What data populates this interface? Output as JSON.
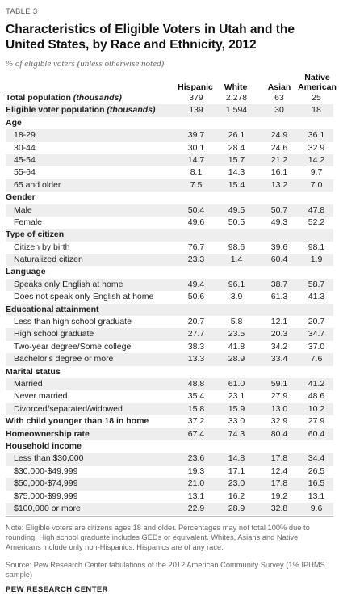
{
  "table_label": "TABLE 3",
  "title": "Characteristics of Eligible Voters in Utah and the United States, by Race and Ethnicity, 2012",
  "subtitle": "% of eligible voters (unless otherwise noted)",
  "columns": [
    "Hispanic",
    "White",
    "Asian",
    "Native American"
  ],
  "totals": [
    {
      "label_main": "Total population ",
      "label_em": "(thousands)",
      "values": [
        "379",
        "2,278",
        "63",
        "25"
      ]
    },
    {
      "label_main": "Eligible voter population ",
      "label_em": "(thousands)",
      "values": [
        "139",
        "1,594",
        "30",
        "18"
      ]
    }
  ],
  "rows": [
    {
      "type": "section",
      "label": "Age"
    },
    {
      "type": "item",
      "label": "18-29",
      "values": [
        "39.7",
        "26.1",
        "24.9",
        "36.1"
      ]
    },
    {
      "type": "item",
      "label": "30-44",
      "values": [
        "30.1",
        "28.4",
        "24.6",
        "32.9"
      ]
    },
    {
      "type": "item",
      "label": "45-54",
      "values": [
        "14.7",
        "15.7",
        "21.2",
        "14.2"
      ]
    },
    {
      "type": "item",
      "label": "55-64",
      "values": [
        "8.1",
        "14.3",
        "16.1",
        "9.7"
      ]
    },
    {
      "type": "item",
      "label": "65 and older",
      "values": [
        "7.5",
        "15.4",
        "13.2",
        "7.0"
      ]
    },
    {
      "type": "section",
      "label": "Gender"
    },
    {
      "type": "item",
      "label": "Male",
      "values": [
        "50.4",
        "49.5",
        "50.7",
        "47.8"
      ]
    },
    {
      "type": "item",
      "label": "Female",
      "values": [
        "49.6",
        "50.5",
        "49.3",
        "52.2"
      ]
    },
    {
      "type": "section",
      "label": "Type of citizen"
    },
    {
      "type": "item",
      "label": "Citizen by birth",
      "values": [
        "76.7",
        "98.6",
        "39.6",
        "98.1"
      ]
    },
    {
      "type": "item",
      "label": "Naturalized citizen",
      "values": [
        "23.3",
        "1.4",
        "60.4",
        "1.9"
      ]
    },
    {
      "type": "section",
      "label": "Language"
    },
    {
      "type": "item",
      "label": "Speaks only English at home",
      "values": [
        "49.4",
        "96.1",
        "38.7",
        "58.7"
      ]
    },
    {
      "type": "item",
      "label": "Does not speak only English at home",
      "values": [
        "50.6",
        "3.9",
        "61.3",
        "41.3"
      ]
    },
    {
      "type": "section",
      "label": "Educational attainment"
    },
    {
      "type": "item",
      "label": "Less than high school graduate",
      "values": [
        "20.7",
        "5.8",
        "12.1",
        "20.7"
      ]
    },
    {
      "type": "item",
      "label": "High school graduate",
      "values": [
        "27.7",
        "23.5",
        "20.3",
        "34.7"
      ]
    },
    {
      "type": "item",
      "label": "Two-year degree/Some college",
      "values": [
        "38.3",
        "41.8",
        "34.2",
        "37.0"
      ]
    },
    {
      "type": "item",
      "label": "Bachelor's degree or more",
      "values": [
        "13.3",
        "28.9",
        "33.4",
        "7.6"
      ]
    },
    {
      "type": "section",
      "label": "Marital status"
    },
    {
      "type": "item",
      "label": "Married",
      "values": [
        "48.8",
        "61.0",
        "59.1",
        "41.2"
      ]
    },
    {
      "type": "item",
      "label": "Never married",
      "values": [
        "35.4",
        "23.1",
        "27.9",
        "48.6"
      ]
    },
    {
      "type": "item",
      "label": "Divorced/separated/widowed",
      "values": [
        "15.8",
        "15.9",
        "13.0",
        "10.2"
      ]
    },
    {
      "type": "boldrow",
      "label": "With child younger than 18 in home",
      "values": [
        "37.2",
        "33.0",
        "32.9",
        "27.9"
      ]
    },
    {
      "type": "boldrow",
      "label": "Homeownership rate",
      "values": [
        "67.4",
        "74.3",
        "80.4",
        "60.4"
      ]
    },
    {
      "type": "section",
      "label": "Household income"
    },
    {
      "type": "item",
      "label": "Less than $30,000",
      "values": [
        "23.6",
        "14.8",
        "17.8",
        "34.4"
      ]
    },
    {
      "type": "item",
      "label": "$30,000-$49,999",
      "values": [
        "19.3",
        "17.1",
        "12.4",
        "26.5"
      ]
    },
    {
      "type": "item",
      "label": "$50,000-$74,999",
      "values": [
        "21.0",
        "23.0",
        "17.8",
        "16.5"
      ]
    },
    {
      "type": "item",
      "label": "$75,000-$99,999",
      "values": [
        "13.1",
        "16.2",
        "19.2",
        "13.1"
      ]
    },
    {
      "type": "item",
      "label": "$100,000 or more",
      "values": [
        "22.9",
        "28.9",
        "32.8",
        "9.6"
      ]
    }
  ],
  "note": "Note: Eligible voters are citizens ages 18 and older. Percentages may not total 100% due to rounding. High school graduate includes GEDs or equivalent. Whites, Asians and Native Americans include only non-Hispanics. Hispanics are of any race.",
  "source": "Source: Pew Research Center tabulations of the 2012 American Community Survey (1% IPUMS sample)",
  "footer": "PEW RESEARCH CENTER"
}
